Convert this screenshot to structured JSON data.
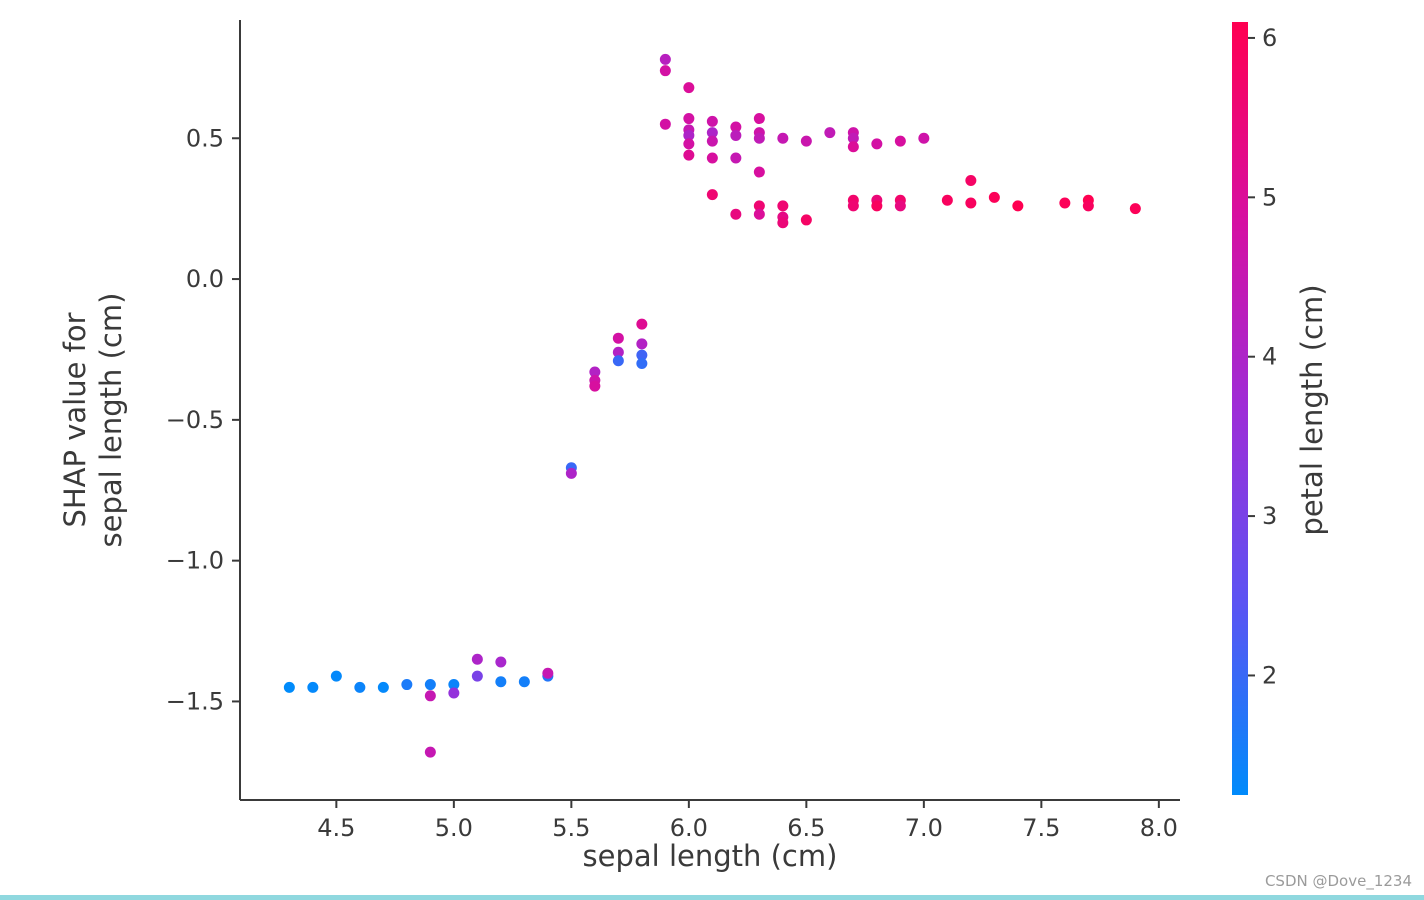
{
  "watermark": "CSDN @Dove_1234",
  "colors": {
    "background": "#ffffff",
    "axis": "#3a3a3a",
    "tick_label": "#3a3a3a",
    "watermark": "#9b9b9b",
    "bottom_strip": "#8fd8df",
    "colormap_stops": [
      "#008bfb",
      "#5c53f3",
      "#9e2cd7",
      "#d70fa0",
      "#ff0051"
    ]
  },
  "chart_data": {
    "type": "scatter",
    "title": "",
    "xlabel": "sepal length (cm)",
    "ylabel": "SHAP value for\nsepal length (cm)",
    "ylabel_line1": "SHAP value for",
    "ylabel_line2": "sepal length (cm)",
    "colorbar_label": "petal length (cm)",
    "xlim": [
      4.09,
      8.09
    ],
    "ylim": [
      -1.85,
      0.92
    ],
    "grid": false,
    "xticks": [
      {
        "v": 4.5,
        "label": "4.5"
      },
      {
        "v": 5.0,
        "label": "5.0"
      },
      {
        "v": 5.5,
        "label": "5.5"
      },
      {
        "v": 6.0,
        "label": "6.0"
      },
      {
        "v": 6.5,
        "label": "6.5"
      },
      {
        "v": 7.0,
        "label": "7.0"
      },
      {
        "v": 7.5,
        "label": "7.5"
      },
      {
        "v": 8.0,
        "label": "8.0"
      }
    ],
    "yticks": [
      {
        "v": 0.5,
        "label": "0.5"
      },
      {
        "v": 0.0,
        "label": "0.0"
      },
      {
        "v": -0.5,
        "label": "−0.5"
      },
      {
        "v": -1.0,
        "label": "−1.0"
      },
      {
        "v": -1.5,
        "label": "−1.5"
      }
    ],
    "colorbar": {
      "vmin": 1.25,
      "vmax": 6.1,
      "ticks": [
        {
          "v": 6,
          "label": "6"
        },
        {
          "v": 5,
          "label": "5"
        },
        {
          "v": 4,
          "label": "4"
        },
        {
          "v": 3,
          "label": "3"
        },
        {
          "v": 2,
          "label": "2"
        }
      ]
    },
    "point_format": [
      "sepal_length_cm",
      "shap_value",
      "petal_length_cm"
    ],
    "series": [
      {
        "name": "shap_dependence_points",
        "points": [
          [
            4.3,
            -1.45,
            1.1
          ],
          [
            4.4,
            -1.45,
            1.3
          ],
          [
            4.5,
            -1.41,
            1.3
          ],
          [
            4.6,
            -1.45,
            1.4
          ],
          [
            4.7,
            -1.45,
            1.3
          ],
          [
            4.8,
            -1.44,
            1.6
          ],
          [
            4.9,
            -1.44,
            1.5
          ],
          [
            4.9,
            -1.48,
            4.5
          ],
          [
            4.9,
            -1.68,
            4.5
          ],
          [
            5.0,
            -1.44,
            1.4
          ],
          [
            5.0,
            -1.47,
            3.5
          ],
          [
            5.1,
            -1.41,
            3.0
          ],
          [
            5.1,
            -1.35,
            4.0
          ],
          [
            5.2,
            -1.43,
            1.5
          ],
          [
            5.2,
            -1.36,
            3.9
          ],
          [
            5.3,
            -1.43,
            1.5
          ],
          [
            5.4,
            -1.41,
            1.7
          ],
          [
            5.4,
            -1.4,
            4.5
          ],
          [
            5.5,
            -0.67,
            2.0
          ],
          [
            5.5,
            -0.69,
            4.0
          ],
          [
            5.6,
            -0.33,
            4.1
          ],
          [
            5.6,
            -0.36,
            4.7
          ],
          [
            5.6,
            -0.38,
            4.9
          ],
          [
            5.7,
            -0.21,
            4.8
          ],
          [
            5.7,
            -0.26,
            4.1
          ],
          [
            5.7,
            -0.29,
            2.0
          ],
          [
            5.8,
            -0.16,
            5.1
          ],
          [
            5.8,
            -0.23,
            4.1
          ],
          [
            5.8,
            -0.27,
            2.1
          ],
          [
            5.8,
            -0.3,
            1.9
          ],
          [
            5.9,
            0.78,
            4.2
          ],
          [
            5.9,
            0.74,
            4.8
          ],
          [
            5.9,
            0.55,
            4.8
          ],
          [
            6.0,
            0.68,
            5.0
          ],
          [
            6.0,
            0.57,
            4.8
          ],
          [
            6.0,
            0.53,
            4.5
          ],
          [
            6.0,
            0.51,
            4.0
          ],
          [
            6.0,
            0.48,
            4.8
          ],
          [
            6.0,
            0.44,
            5.1
          ],
          [
            6.1,
            0.56,
            4.7
          ],
          [
            6.1,
            0.52,
            4.0
          ],
          [
            6.1,
            0.49,
            4.6
          ],
          [
            6.1,
            0.43,
            4.9
          ],
          [
            6.1,
            0.3,
            5.6
          ],
          [
            6.2,
            0.54,
            4.8
          ],
          [
            6.2,
            0.51,
            4.3
          ],
          [
            6.2,
            0.43,
            4.5
          ],
          [
            6.2,
            0.23,
            5.4
          ],
          [
            6.3,
            0.57,
            4.9
          ],
          [
            6.3,
            0.52,
            4.7
          ],
          [
            6.3,
            0.5,
            4.4
          ],
          [
            6.3,
            0.38,
            4.9
          ],
          [
            6.3,
            0.26,
            5.6
          ],
          [
            6.3,
            0.23,
            5.0
          ],
          [
            6.4,
            0.5,
            4.5
          ],
          [
            6.4,
            0.26,
            5.6
          ],
          [
            6.4,
            0.22,
            5.3
          ],
          [
            6.4,
            0.2,
            5.5
          ],
          [
            6.5,
            0.49,
            4.6
          ],
          [
            6.5,
            0.21,
            5.8
          ],
          [
            6.6,
            0.52,
            4.4
          ],
          [
            6.7,
            0.52,
            4.7
          ],
          [
            6.7,
            0.5,
            4.4
          ],
          [
            6.7,
            0.47,
            5.0
          ],
          [
            6.7,
            0.28,
            5.7
          ],
          [
            6.7,
            0.26,
            5.6
          ],
          [
            6.8,
            0.48,
            4.8
          ],
          [
            6.8,
            0.28,
            5.5
          ],
          [
            6.8,
            0.26,
            5.9
          ],
          [
            6.9,
            0.49,
            4.9
          ],
          [
            6.9,
            0.28,
            5.7
          ],
          [
            6.9,
            0.26,
            5.4
          ],
          [
            7.0,
            0.5,
            4.7
          ],
          [
            7.1,
            0.28,
            5.9
          ],
          [
            7.2,
            0.35,
            5.8
          ],
          [
            7.2,
            0.27,
            5.9
          ],
          [
            7.3,
            0.29,
            6.0
          ],
          [
            7.4,
            0.26,
            6.1
          ],
          [
            7.6,
            0.27,
            6.0
          ],
          [
            7.7,
            0.28,
            6.1
          ],
          [
            7.7,
            0.26,
            5.9
          ],
          [
            7.9,
            0.25,
            6.0
          ]
        ]
      }
    ]
  }
}
